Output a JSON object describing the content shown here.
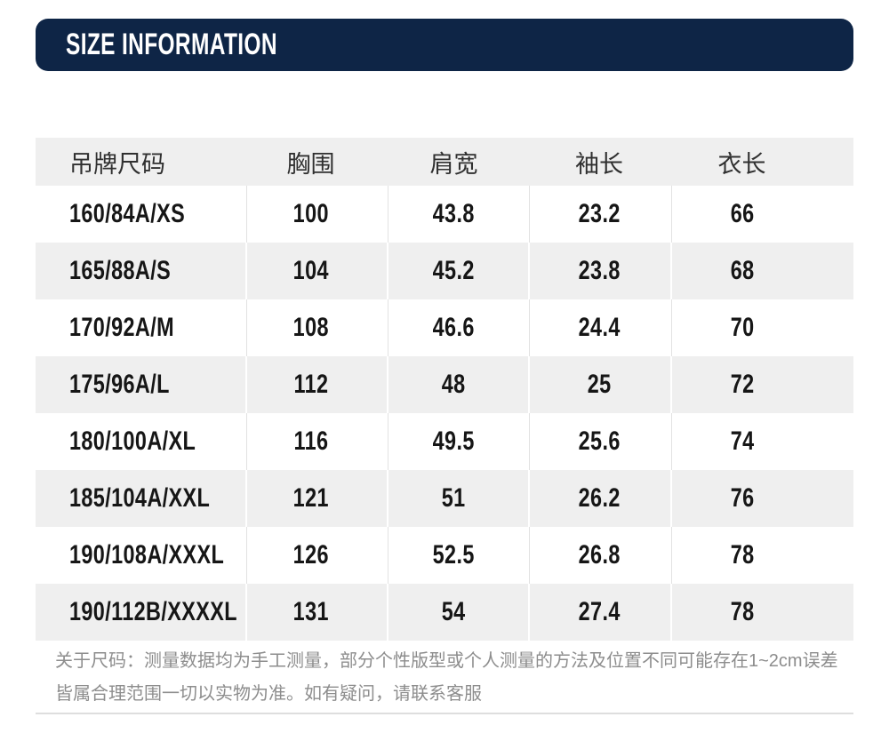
{
  "section_header": {
    "title": "SIZE INFORMATION"
  },
  "size_table": {
    "columns": [
      "吊牌尺码",
      "胸围",
      "肩宽",
      "袖长",
      "衣长"
    ],
    "rows": [
      [
        "160/84A/XS",
        "100",
        "43.8",
        "23.2",
        "66"
      ],
      [
        "165/88A/S",
        "104",
        "45.2",
        "23.8",
        "68"
      ],
      [
        "170/92A/M",
        "108",
        "46.6",
        "24.4",
        "70"
      ],
      [
        "175/96A/L",
        "112",
        "48",
        "25",
        "72"
      ],
      [
        "180/100A/XL",
        "116",
        "49.5",
        "25.6",
        "74"
      ],
      [
        "185/104A/XXL",
        "121",
        "51",
        "26.2",
        "76"
      ],
      [
        "190/108A/XXXL",
        "126",
        "52.5",
        "26.8",
        "78"
      ],
      [
        "190/112B/XXXXL",
        "131",
        "54",
        "27.4",
        "78"
      ]
    ]
  },
  "note": {
    "line1": "关于尺码：测量数据均为手工测量，部分个性版型或个人测量的方法及位置不同可能存在1~2cm误差",
    "line2": "皆属合理范围一切以实物为准。如有疑问，请联系客服"
  },
  "colors": {
    "banner_background": "#0e2546",
    "banner_text": "#ffffff",
    "row_alternate_background": "#efefef",
    "separator_on_white_rows": "#e2e2e2",
    "separator_on_gray_rows": "#ffffff",
    "header_text": "#303030",
    "cell_text": "#161616",
    "note_text": "#8d8d8d",
    "divider": "#dedede"
  }
}
